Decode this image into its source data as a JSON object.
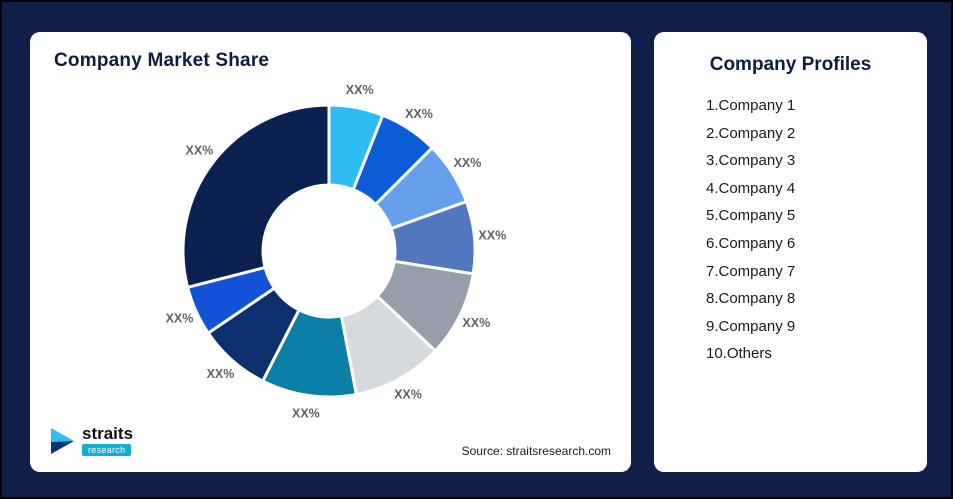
{
  "page": {
    "background": "#101F47"
  },
  "chart_card": {
    "title": "Company Market Share",
    "source": "Source: straitsresearch.com",
    "logo": {
      "brand": "straits",
      "sub": "research"
    }
  },
  "chart_data": {
    "type": "pie",
    "variant": "donut",
    "title": "Company Market Share",
    "legend": "none",
    "data_labels_shown_as": "XX% (placeholder percentages, actual values not disclosed)",
    "label_color": "#5E6268",
    "segments": [
      {
        "name": "Company 1",
        "label": "XX%",
        "value": 6,
        "color": "#2FBCF2"
      },
      {
        "name": "Company 2",
        "label": "XX%",
        "value": 6.5,
        "color": "#0A5CD7"
      },
      {
        "name": "Company 3",
        "label": "XX%",
        "value": 7,
        "color": "#66A0EC"
      },
      {
        "name": "Company 4",
        "label": "XX%",
        "value": 8,
        "color": "#5377BE"
      },
      {
        "name": "Company 5",
        "label": "XX%",
        "value": 9.5,
        "color": "#969EA9"
      },
      {
        "name": "Company 6",
        "label": "XX%",
        "value": 10,
        "color": "#D6DADF"
      },
      {
        "name": "Company 7",
        "label": "XX%",
        "value": 10.5,
        "color": "#0B7FA5"
      },
      {
        "name": "Company 8",
        "label": "XX%",
        "value": 8,
        "color": "#0D2F6E"
      },
      {
        "name": "Company 9",
        "label": "XX%",
        "value": 5.5,
        "color": "#1252D4"
      },
      {
        "name": "Others",
        "label": "XX%",
        "value": 29,
        "color": "#0B2152"
      }
    ]
  },
  "profiles_card": {
    "title": "Company Profiles",
    "items": [
      "1.Company 1",
      "2.Company 2",
      "3.Company 3",
      "4.Company 4",
      "5.Company 5",
      "6.Company 6",
      "7.Company 7",
      "8.Company 8",
      "9.Company 9",
      "10.Others"
    ]
  }
}
